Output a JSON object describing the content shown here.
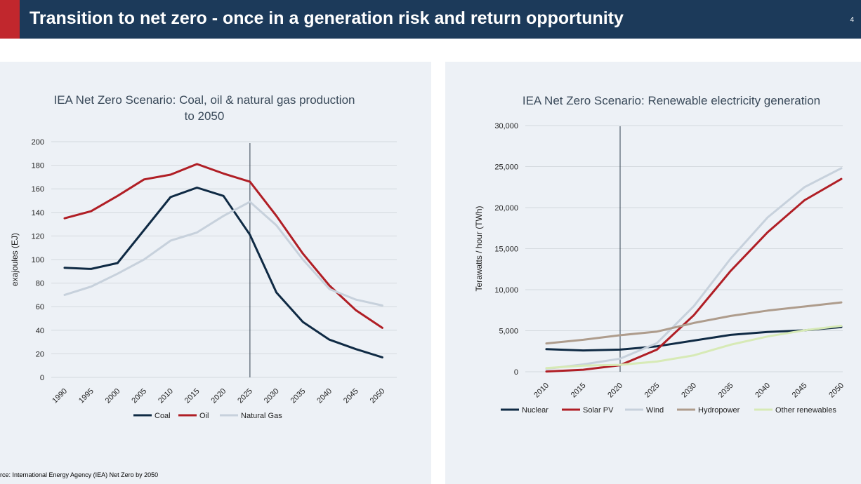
{
  "header": {
    "title": "Transition to net zero - once in a generation risk and return opportunity",
    "page_number": "4"
  },
  "source_note": "rce: International Energy Agency (IEA) Net Zero by 2050",
  "colors": {
    "header_bg": "#1c3a5a",
    "accent": "#c1272d",
    "panel_bg": "#edf1f6"
  },
  "chart_data": [
    {
      "type": "line",
      "title": "IEA Net Zero Scenario: Coal, oil & natural gas production to 2050",
      "title_lines": [
        "IEA Net Zero Scenario: Coal, oil & natural gas production",
        "to 2050"
      ],
      "xlabel": "",
      "ylabel": "exajoules (EJ)",
      "categories": [
        "1990",
        "1995",
        "2000",
        "2005",
        "2010",
        "2015",
        "2020",
        "2025",
        "2030",
        "2035",
        "2040",
        "2045",
        "2050"
      ],
      "ylim": [
        0,
        200
      ],
      "yticks": [
        0,
        20,
        40,
        60,
        80,
        100,
        120,
        140,
        160,
        180,
        200
      ],
      "ytick_labels": [
        "0",
        "20",
        "40",
        "60",
        "80",
        "100",
        "120",
        "140",
        "160",
        "180",
        "200"
      ],
      "grid": true,
      "legend_position": "bottom",
      "vertical_marker_category": "2025",
      "series": [
        {
          "name": "Coal",
          "color": "#0f2a44",
          "values": [
            93,
            92,
            97,
            125,
            153,
            161,
            154,
            121,
            72,
            47,
            32,
            24,
            17
          ]
        },
        {
          "name": "Oil",
          "color": "#b01e25",
          "values": [
            135,
            141,
            154,
            168,
            172,
            181,
            173,
            166,
            137,
            105,
            78,
            57,
            42
          ]
        },
        {
          "name": "Natural Gas",
          "color": "#c7d1dc",
          "values": [
            70,
            77,
            88,
            100,
            116,
            123,
            137,
            149,
            129,
            100,
            75,
            66,
            61
          ]
        }
      ]
    },
    {
      "type": "line",
      "title": "IEA Net Zero Scenario: Renewable electricity generation",
      "title_lines": [
        "IEA Net Zero Scenario: Renewable electricity generation"
      ],
      "xlabel": "",
      "ylabel": "Terawatts / hour (TWh)",
      "categories": [
        "2010",
        "2015",
        "2020",
        "2025",
        "2030",
        "2035",
        "2040",
        "2045",
        "2050"
      ],
      "ylim": [
        0,
        30000
      ],
      "yticks": [
        0,
        5000,
        10000,
        15000,
        20000,
        25000,
        30000
      ],
      "ytick_labels": [
        "0",
        "5,000",
        "10,000",
        "15,000",
        "20,000",
        "25,000",
        "30,000"
      ],
      "grid": true,
      "legend_position": "bottom",
      "vertical_marker_category": "2020",
      "series": [
        {
          "name": "Nuclear",
          "color": "#0f2a44",
          "values": [
            2750,
            2600,
            2700,
            3100,
            3800,
            4500,
            4850,
            5050,
            5450
          ]
        },
        {
          "name": "Solar PV",
          "color": "#b01e25",
          "values": [
            30,
            250,
            800,
            2700,
            6900,
            12300,
            17000,
            20900,
            23500
          ]
        },
        {
          "name": "Wind",
          "color": "#c7d1dc",
          "values": [
            350,
            900,
            1600,
            3500,
            8000,
            13800,
            18800,
            22500,
            24800
          ]
        },
        {
          "name": "Hydropower",
          "color": "#ae9c8c",
          "values": [
            3450,
            3900,
            4450,
            4900,
            5950,
            6800,
            7450,
            7950,
            8450
          ]
        },
        {
          "name": "Other renewables",
          "color": "#d7eab6",
          "values": [
            450,
            750,
            850,
            1250,
            2000,
            3300,
            4300,
            5050,
            5600
          ]
        }
      ]
    }
  ]
}
